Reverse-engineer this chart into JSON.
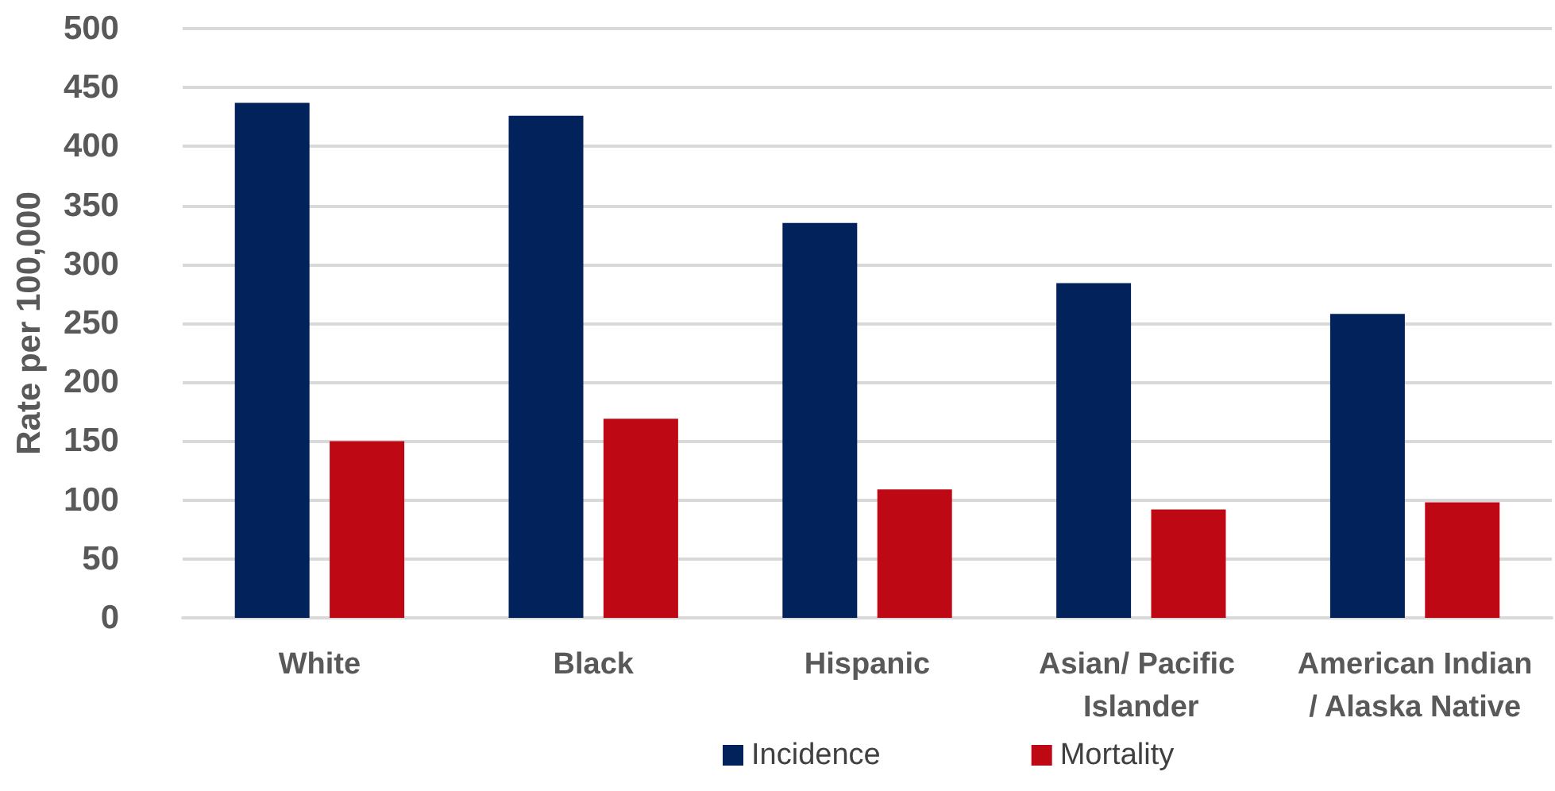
{
  "chart_data": {
    "type": "bar",
    "ylabel": "Rate per 100,000",
    "categories": [
      "White",
      "Black",
      "Hispanic",
      "Asian/ Pacific Islander",
      "American Indian/ Alaska Native"
    ],
    "series": [
      {
        "name": "Incidence",
        "color": "#02225c",
        "values": [
          437,
          426,
          335,
          284,
          258
        ]
      },
      {
        "name": "Mortality",
        "color": "#be0814",
        "values": [
          150,
          169,
          109,
          92,
          98
        ]
      }
    ],
    "ylim": [
      0,
      500
    ],
    "yticks": [
      0,
      50,
      100,
      150,
      200,
      250,
      300,
      350,
      400,
      450,
      500
    ],
    "grid": "y",
    "legend": "bottom"
  }
}
